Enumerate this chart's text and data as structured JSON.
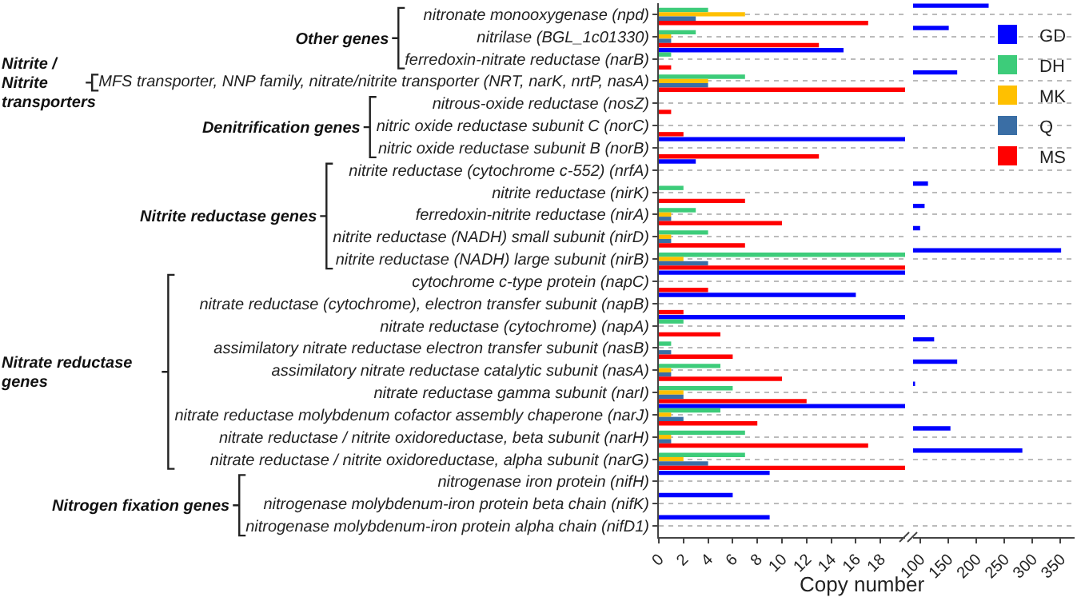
{
  "chart_data": [
    {
      "type": "bar",
      "orientation": "horizontal",
      "xlabel": "Copy number",
      "categories": [
        "nitronate monooxygenase (npd)",
        "nitrilase (BGL_1c01330)",
        "ferredoxin-nitrate reductase (narB)",
        "MFS transporter, NNP family, nitrate/nitrite transporter (NRT, narK, nrtP, nasA)",
        "nitrous-oxide reductase (nosZ)",
        "nitric oxide reductase subunit C (norC)",
        "nitric oxide reductase subunit B (norB)",
        "nitrite reductase (cytochrome c-552) (nrfA)",
        "nitrite reductase (nirK)",
        "ferredoxin-nitrite reductase (nirA)",
        "nitrite reductase (NADH) small subunit (nirD)",
        "nitrite reductase (NADH) large subunit (nirB)",
        "cytochrome c-type protein (napC)",
        "nitrate reductase (cytochrome), electron transfer subunit (napB)",
        "nitrate reductase (cytochrome) (napA)",
        "assimilatory nitrate reductase electron transfer subunit (nasB)",
        "assimilatory nitrate reductase catalytic subunit (nasA)",
        "nitrate reductase gamma subunit (narI)",
        "nitrate reductase molybdenum cofactor assembly chaperone (narJ)",
        "nitrate reductase / nitrite oxidoreductase, beta subunit (narH)",
        "nitrate reductase / nitrite oxidoreductase, alpha subunit (narG)",
        "nitrogenase iron protein (nifH)",
        "nitrogenase molybdenum-iron protein beta chain (nifK)",
        "nitrogenase molybdenum-iron protein alpha chain (nifD1)"
      ],
      "series": [
        {
          "color": "#0000ff",
          "values": [
            null,
            null,
            15,
            null,
            0,
            0,
            20,
            3,
            null,
            null,
            null,
            null,
            20,
            16,
            20,
            null,
            null,
            null,
            20,
            null,
            null,
            9,
            6,
            9
          ]
        },
        {
          "color": "#3dcc7a",
          "values": [
            4,
            3,
            1,
            7,
            0,
            0,
            0,
            0,
            2,
            3,
            4,
            20,
            0,
            0,
            2,
            1,
            5,
            6,
            5,
            7,
            7,
            0,
            0,
            0
          ]
        },
        {
          "color": "#ffc000",
          "values": [
            7,
            1,
            0,
            4,
            0,
            0,
            0,
            0,
            0,
            1,
            1,
            2,
            0,
            0,
            0,
            0,
            1,
            2,
            1,
            1,
            2,
            0,
            0,
            0
          ]
        },
        {
          "color": "#3a6ea5",
          "values": [
            3,
            1,
            0,
            4,
            0,
            0,
            0,
            0,
            0,
            1,
            1,
            4,
            0,
            0,
            0,
            1,
            1,
            2,
            2,
            1,
            4,
            0,
            0,
            0
          ]
        },
        {
          "color": "#ff0000",
          "values": [
            17,
            13,
            1,
            20,
            1,
            2,
            13,
            0,
            7,
            10,
            7,
            20,
            4,
            2,
            5,
            6,
            10,
            12,
            8,
            17,
            20,
            0,
            0,
            0
          ]
        }
      ],
      "xlim": [
        0,
        20
      ],
      "xticks": [
        0,
        2,
        4,
        6,
        8,
        10,
        12,
        14,
        16,
        18
      ],
      "grid": "y",
      "annotations": [
        "Other genes",
        "Nitrite / Nitrite transporters",
        "Denitrification genes",
        "Nitrite reductase genes",
        "Nitrate reductase genes",
        "Nitrogen fixation genes"
      ]
    },
    {
      "type": "bar",
      "orientation": "horizontal",
      "tick_labels": "x",
      "categories": [
        null,
        null,
        null,
        null,
        null,
        null,
        null,
        null,
        null,
        null,
        null,
        null,
        null,
        null,
        null,
        null,
        null,
        null,
        null,
        null,
        null,
        null,
        null,
        null
      ],
      "series": [
        {
          "name": "GD",
          "color": "#0000ff",
          "values": [
            222,
            151,
            null,
            166,
            null,
            null,
            null,
            null,
            114,
            108,
            100,
            351,
            null,
            null,
            null,
            125,
            166,
            91,
            null,
            154,
            282,
            null,
            null,
            null
          ]
        },
        {
          "name": "DH",
          "color": "#3dcc7a",
          "values": [
            null,
            null,
            null,
            null,
            null,
            null,
            null,
            null,
            null,
            null,
            null,
            null,
            null,
            null,
            null,
            null,
            null,
            null,
            null,
            null,
            null,
            null,
            null,
            null
          ]
        },
        {
          "name": "MK",
          "color": "#ffc000",
          "values": [
            null,
            null,
            null,
            null,
            null,
            null,
            null,
            null,
            null,
            null,
            null,
            null,
            null,
            null,
            null,
            null,
            null,
            null,
            null,
            null,
            null,
            null,
            null,
            null
          ]
        },
        {
          "name": "Q",
          "color": "#3a6ea5",
          "values": [
            null,
            null,
            null,
            null,
            null,
            null,
            null,
            null,
            null,
            null,
            null,
            null,
            null,
            null,
            null,
            null,
            null,
            null,
            null,
            null,
            null,
            null,
            null,
            null
          ]
        },
        {
          "name": "MS",
          "color": "#ff0000",
          "values": [
            null,
            null,
            null,
            null,
            null,
            null,
            null,
            null,
            null,
            null,
            null,
            null,
            null,
            null,
            null,
            null,
            null,
            null,
            null,
            null,
            null,
            null,
            null,
            null
          ]
        }
      ],
      "xlim": [
        87.5,
        375
      ],
      "xticks": [
        100,
        150,
        200,
        250,
        300,
        350
      ],
      "grid": "y",
      "legend": "top right"
    }
  ]
}
